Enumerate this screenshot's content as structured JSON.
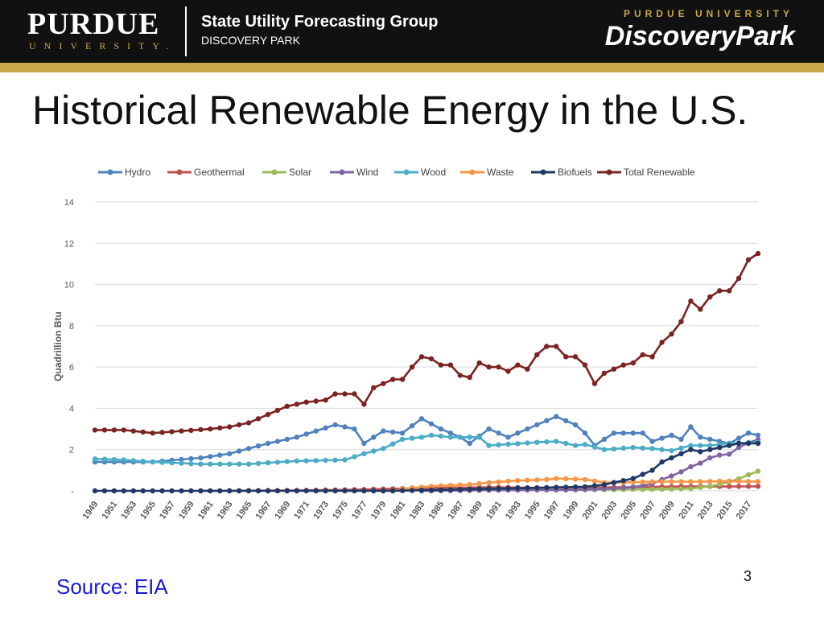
{
  "header": {
    "logo_word": "PURDUE",
    "logo_sub": "UNIVERSITY.",
    "group_name": "State Utility Forecasting Group",
    "group_sub": "DISCOVERY PARK",
    "dp_top": "PURDUE UNIVERSITY",
    "dp_word": "DiscoveryPark"
  },
  "slide": {
    "title": "Historical Renewable Energy in the U.S.",
    "source": "Source: EIA",
    "page_number": "3"
  },
  "colors": {
    "Hydro": "#4f81bd",
    "Geothermal": "#c0504d",
    "Solar": "#9bbb59",
    "Wind": "#8064a2",
    "Wood": "#4bacc6",
    "Waste": "#f79646",
    "Biofuels": "#1f3864",
    "Total Renewable": "#7b2323"
  },
  "chart_data": {
    "type": "line",
    "title": "",
    "xlabel": "",
    "ylabel": "Quadrillion Btu",
    "ylim": [
      0,
      14
    ],
    "yticks": [
      "-",
      "2",
      "4",
      "6",
      "8",
      "10",
      "12",
      "14"
    ],
    "xlim": [
      1949,
      2018
    ],
    "xticks": [
      "1949",
      "1951",
      "1953",
      "1955",
      "1957",
      "1959",
      "1961",
      "1963",
      "1965",
      "1967",
      "1969",
      "1971",
      "1973",
      "1975",
      "1977",
      "1979",
      "1981",
      "1983",
      "1985",
      "1987",
      "1989",
      "1991",
      "1993",
      "1995",
      "1997",
      "1999",
      "2001",
      "2003",
      "2005",
      "2007",
      "2009",
      "2011",
      "2013",
      "2015",
      "2017"
    ],
    "legend_position": "top",
    "grid": true,
    "series": [
      {
        "name": "Hydro",
        "points": [
          [
            1949,
            1.4
          ],
          [
            1955,
            1.4
          ],
          [
            1960,
            1.6
          ],
          [
            1963,
            1.8
          ],
          [
            1967,
            2.3
          ],
          [
            1970,
            2.6
          ],
          [
            1974,
            3.2
          ],
          [
            1976,
            3.0
          ],
          [
            1977,
            2.3
          ],
          [
            1979,
            2.9
          ],
          [
            1981,
            2.8
          ],
          [
            1983,
            3.5
          ],
          [
            1985,
            3.0
          ],
          [
            1987,
            2.6
          ],
          [
            1988,
            2.3
          ],
          [
            1990,
            3.0
          ],
          [
            1992,
            2.6
          ],
          [
            1995,
            3.2
          ],
          [
            1997,
            3.6
          ],
          [
            1999,
            3.2
          ],
          [
            2000,
            2.8
          ],
          [
            2001,
            2.2
          ],
          [
            2003,
            2.8
          ],
          [
            2006,
            2.8
          ],
          [
            2007,
            2.4
          ],
          [
            2009,
            2.7
          ],
          [
            2010,
            2.5
          ],
          [
            2011,
            3.1
          ],
          [
            2012,
            2.6
          ],
          [
            2015,
            2.3
          ],
          [
            2017,
            2.8
          ],
          [
            2018,
            2.7
          ]
        ]
      },
      {
        "name": "Geothermal",
        "points": [
          [
            1960,
            0.0
          ],
          [
            1970,
            0.02
          ],
          [
            1975,
            0.05
          ],
          [
            1980,
            0.1
          ],
          [
            1985,
            0.15
          ],
          [
            1990,
            0.17
          ],
          [
            1995,
            0.15
          ],
          [
            2000,
            0.16
          ],
          [
            2005,
            0.18
          ],
          [
            2010,
            0.21
          ],
          [
            2015,
            0.21
          ],
          [
            2018,
            0.22
          ]
        ]
      },
      {
        "name": "Solar",
        "points": [
          [
            1984,
            0.0
          ],
          [
            1990,
            0.06
          ],
          [
            2000,
            0.06
          ],
          [
            2008,
            0.08
          ],
          [
            2011,
            0.11
          ],
          [
            2013,
            0.22
          ],
          [
            2015,
            0.43
          ],
          [
            2016,
            0.59
          ],
          [
            2017,
            0.78
          ],
          [
            2018,
            0.95
          ]
        ]
      },
      {
        "name": "Wind",
        "points": [
          [
            1983,
            0.0
          ],
          [
            1990,
            0.03
          ],
          [
            1999,
            0.05
          ],
          [
            2001,
            0.07
          ],
          [
            2003,
            0.12
          ],
          [
            2005,
            0.18
          ],
          [
            2007,
            0.34
          ],
          [
            2008,
            0.55
          ],
          [
            2009,
            0.72
          ],
          [
            2010,
            0.92
          ],
          [
            2011,
            1.17
          ],
          [
            2012,
            1.34
          ],
          [
            2013,
            1.6
          ],
          [
            2014,
            1.73
          ],
          [
            2015,
            1.78
          ],
          [
            2016,
            2.1
          ],
          [
            2017,
            2.34
          ],
          [
            2018,
            2.48
          ]
        ]
      },
      {
        "name": "Wood",
        "points": [
          [
            1949,
            1.55
          ],
          [
            1952,
            1.5
          ],
          [
            1955,
            1.4
          ],
          [
            1960,
            1.3
          ],
          [
            1965,
            1.3
          ],
          [
            1970,
            1.45
          ],
          [
            1975,
            1.5
          ],
          [
            1977,
            1.8
          ],
          [
            1979,
            2.05
          ],
          [
            1981,
            2.5
          ],
          [
            1983,
            2.6
          ],
          [
            1984,
            2.7
          ],
          [
            1986,
            2.6
          ],
          [
            1989,
            2.6
          ],
          [
            1990,
            2.2
          ],
          [
            1995,
            2.35
          ],
          [
            1997,
            2.4
          ],
          [
            1999,
            2.2
          ],
          [
            2000,
            2.25
          ],
          [
            2002,
            2.0
          ],
          [
            2005,
            2.1
          ],
          [
            2007,
            2.05
          ],
          [
            2009,
            1.95
          ],
          [
            2011,
            2.2
          ],
          [
            2013,
            2.2
          ],
          [
            2015,
            2.3
          ],
          [
            2018,
            2.35
          ]
        ]
      },
      {
        "name": "Waste",
        "points": [
          [
            1980,
            0.0
          ],
          [
            1982,
            0.15
          ],
          [
            1985,
            0.25
          ],
          [
            1988,
            0.3
          ],
          [
            1990,
            0.4
          ],
          [
            1993,
            0.5
          ],
          [
            1996,
            0.55
          ],
          [
            1997,
            0.6
          ],
          [
            2000,
            0.55
          ],
          [
            2001,
            0.48
          ],
          [
            2002,
            0.4
          ],
          [
            2005,
            0.42
          ],
          [
            2008,
            0.45
          ],
          [
            2012,
            0.45
          ],
          [
            2015,
            0.47
          ],
          [
            2018,
            0.45
          ]
        ]
      },
      {
        "name": "Biofuels",
        "points": [
          [
            1949,
            0.0
          ],
          [
            1980,
            0.0
          ],
          [
            1990,
            0.1
          ],
          [
            1995,
            0.15
          ],
          [
            2000,
            0.2
          ],
          [
            2001,
            0.25
          ],
          [
            2002,
            0.3
          ],
          [
            2003,
            0.4
          ],
          [
            2004,
            0.5
          ],
          [
            2005,
            0.6
          ],
          [
            2006,
            0.8
          ],
          [
            2007,
            1.0
          ],
          [
            2008,
            1.4
          ],
          [
            2009,
            1.6
          ],
          [
            2010,
            1.8
          ],
          [
            2011,
            2.0
          ],
          [
            2012,
            1.9
          ],
          [
            2013,
            2.0
          ],
          [
            2014,
            2.1
          ],
          [
            2015,
            2.2
          ],
          [
            2016,
            2.3
          ],
          [
            2017,
            2.3
          ],
          [
            2018,
            2.3
          ]
        ]
      },
      {
        "name": "Total Renewable",
        "points": [
          [
            1949,
            2.95
          ],
          [
            1952,
            2.95
          ],
          [
            1955,
            2.8
          ],
          [
            1958,
            2.9
          ],
          [
            1961,
            3.0
          ],
          [
            1963,
            3.1
          ],
          [
            1965,
            3.3
          ],
          [
            1967,
            3.7
          ],
          [
            1969,
            4.1
          ],
          [
            1971,
            4.3
          ],
          [
            1973,
            4.4
          ],
          [
            1974,
            4.7
          ],
          [
            1976,
            4.7
          ],
          [
            1977,
            4.2
          ],
          [
            1978,
            5.0
          ],
          [
            1980,
            5.4
          ],
          [
            1981,
            5.4
          ],
          [
            1982,
            6.0
          ],
          [
            1983,
            6.5
          ],
          [
            1984,
            6.4
          ],
          [
            1985,
            6.1
          ],
          [
            1986,
            6.1
          ],
          [
            1987,
            5.6
          ],
          [
            1988,
            5.5
          ],
          [
            1989,
            6.2
          ],
          [
            1990,
            6.0
          ],
          [
            1991,
            6.0
          ],
          [
            1992,
            5.8
          ],
          [
            1993,
            6.1
          ],
          [
            1994,
            5.9
          ],
          [
            1995,
            6.6
          ],
          [
            1996,
            7.0
          ],
          [
            1997,
            7.0
          ],
          [
            1998,
            6.5
          ],
          [
            1999,
            6.5
          ],
          [
            2000,
            6.1
          ],
          [
            2001,
            5.2
          ],
          [
            2002,
            5.7
          ],
          [
            2003,
            5.9
          ],
          [
            2004,
            6.1
          ],
          [
            2005,
            6.2
          ],
          [
            2006,
            6.6
          ],
          [
            2007,
            6.5
          ],
          [
            2008,
            7.2
          ],
          [
            2009,
            7.6
          ],
          [
            2010,
            8.2
          ],
          [
            2011,
            9.2
          ],
          [
            2012,
            8.8
          ],
          [
            2013,
            9.4
          ],
          [
            2014,
            9.7
          ],
          [
            2015,
            9.7
          ],
          [
            2016,
            10.3
          ],
          [
            2017,
            11.2
          ],
          [
            2018,
            11.5
          ]
        ]
      }
    ]
  }
}
